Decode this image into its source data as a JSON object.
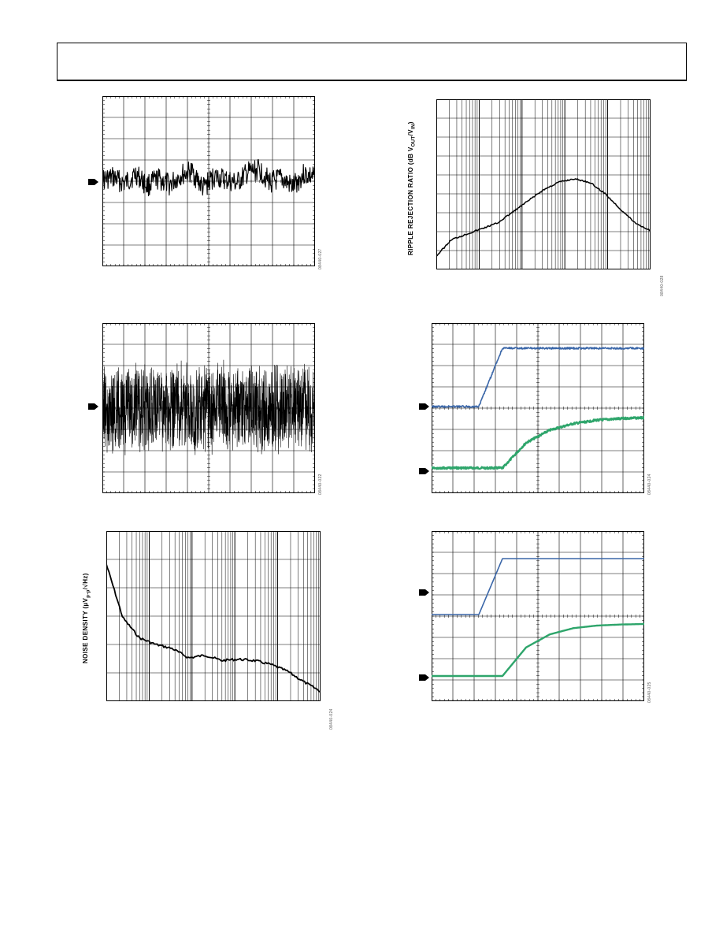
{
  "page": {
    "header": {
      "title": ""
    }
  },
  "figures": [
    {
      "id": "fig-noise-ac",
      "code": "08440-027"
    },
    {
      "id": "fig-ripple",
      "code": "08440-028",
      "ylabel_main": "RIPPLE REJECTION RATIO (dB V",
      "ylabel_sub1": "OUT",
      "ylabel_mid": "/V",
      "ylabel_sub2": "IN",
      "ylabel_end": ")"
    },
    {
      "id": "fig-noise-wideband",
      "code": "08440-022"
    },
    {
      "id": "fig-startup-1",
      "code": "08440-024"
    },
    {
      "id": "fig-noise-density",
      "code": "08440-024",
      "ylabel_main": "NOISE DENSITY (µV",
      "ylabel_sub1": "p-p",
      "ylabel_end": "/√Hz)"
    },
    {
      "id": "fig-startup-2",
      "code": "08440-025"
    }
  ],
  "colors": {
    "blue": "#3a66a8",
    "green": "#2ea56b",
    "trace": "#000000",
    "grid": "#000000"
  },
  "chart_data": [
    {
      "type": "line",
      "title": "",
      "xlabel": "",
      "ylabel": "",
      "grid": true,
      "series": [
        {
          "values": [
            0.05,
            0.15,
            -0.1,
            0.3,
            -0.2,
            0.1,
            -0.15,
            0.25,
            0.4,
            -0.3,
            0.2,
            0.05,
            -0.1,
            0.35,
            0.5,
            -0.05,
            0.1,
            -0.25,
            0.3,
            0.15
          ]
        }
      ]
    },
    {
      "type": "line",
      "title": "",
      "xlabel": "",
      "ylabel": "RIPPLE REJECTION RATIO (dB VOUT/VIN)",
      "grid": true,
      "x_scale": "log",
      "series": [
        {
          "values": [
            0.05,
            0.2,
            0.25,
            0.3,
            0.35,
            0.45,
            0.55,
            0.65,
            0.72,
            0.75,
            0.72,
            0.62,
            0.48,
            0.35,
            0.28
          ]
        }
      ]
    },
    {
      "type": "line",
      "title": "",
      "xlabel": "",
      "ylabel": "",
      "grid": true,
      "series": [
        {
          "values": [
            0.0,
            0.4,
            -0.4,
            0.5,
            -0.5,
            0.3,
            -0.3,
            0.45,
            -0.45,
            0.2
          ]
        }
      ]
    },
    {
      "type": "line",
      "title": "",
      "xlabel": "",
      "ylabel": "",
      "grid": true,
      "series": [
        {
          "values": [
            0.0,
            0.0,
            0.0,
            1.0,
            1.0,
            1.0,
            1.0,
            1.0,
            1.0,
            1.0
          ]
        },
        {
          "values": [
            0.0,
            0.0,
            0.0,
            0.0,
            0.5,
            0.75,
            0.88,
            0.95,
            0.98,
            1.0
          ]
        }
      ]
    },
    {
      "type": "line",
      "title": "",
      "xlabel": "",
      "ylabel": "NOISE DENSITY (µVp-p/√Hz)",
      "grid": true,
      "x_scale": "log",
      "series": [
        {
          "values": [
            1.0,
            0.6,
            0.45,
            0.4,
            0.37,
            0.3,
            0.32,
            0.28,
            0.29,
            0.28,
            0.25,
            0.2,
            0.12,
            0.05
          ]
        }
      ]
    },
    {
      "type": "line",
      "title": "",
      "xlabel": "",
      "ylabel": "",
      "grid": true,
      "series": [
        {
          "values": [
            0.0,
            0.0,
            0.0,
            1.0,
            1.0,
            1.0,
            1.0,
            1.0,
            1.0,
            1.0
          ]
        },
        {
          "values": [
            0.0,
            0.0,
            0.0,
            0.0,
            0.55,
            0.8,
            0.92,
            0.97,
            0.99,
            1.0
          ]
        }
      ]
    }
  ]
}
